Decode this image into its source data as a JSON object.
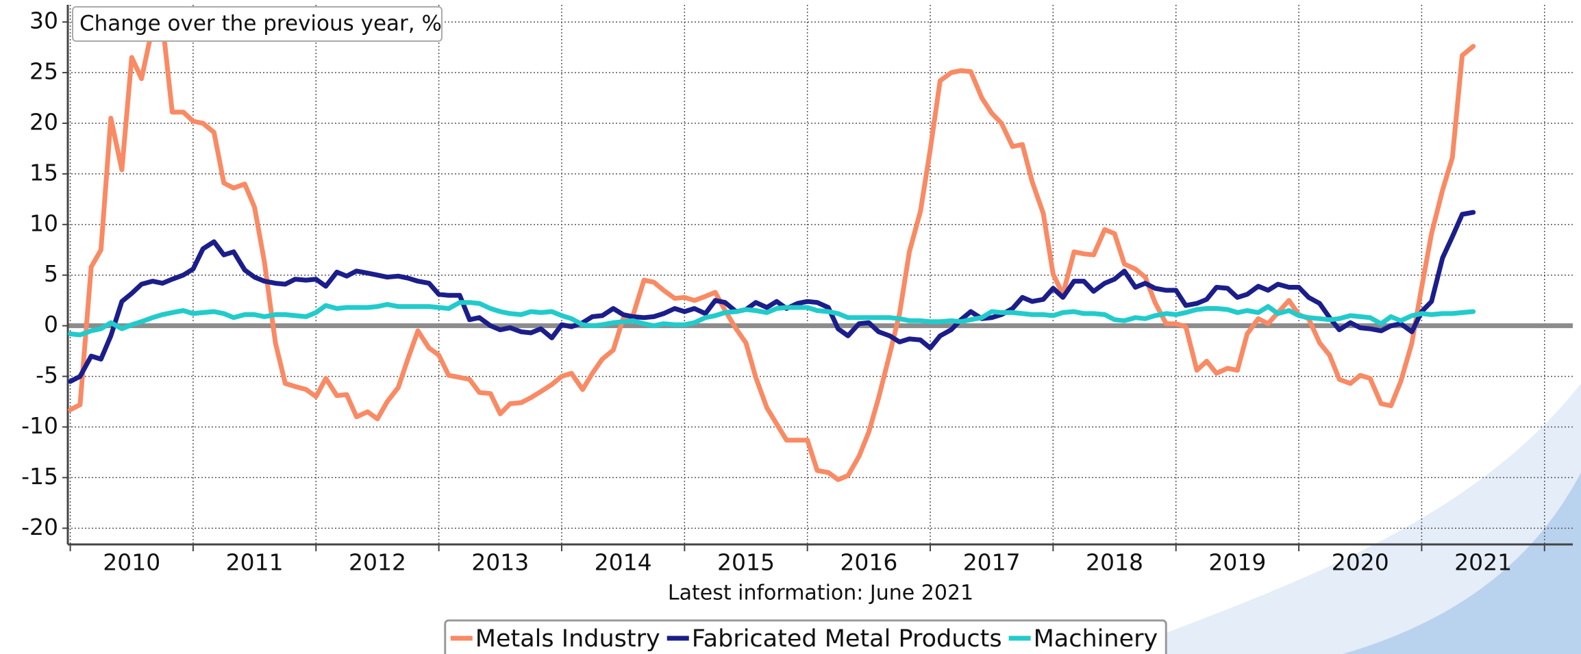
{
  "chart_data": {
    "type": "line",
    "title": "Change over the previous year, %",
    "caption": "Latest information: June 2021",
    "legend": "bottom",
    "grid": true,
    "xlim": [
      2009.98,
      2022.23
    ],
    "xticks": [
      2010,
      2011,
      2012,
      2013,
      2014,
      2015,
      2016,
      2017,
      2018,
      2019,
      2020,
      2021,
      2022
    ],
    "ylim": [
      -21.6,
      31.7
    ],
    "yticks": [
      30,
      25,
      20,
      15,
      10,
      5,
      0,
      -5,
      -10,
      -15,
      -20
    ],
    "x": [
      2010,
      2010.08,
      2010.17,
      2010.25,
      2010.33,
      2010.42,
      2010.5,
      2010.58,
      2010.67,
      2010.75,
      2010.83,
      2010.92,
      2011,
      2011.08,
      2011.17,
      2011.25,
      2011.33,
      2011.42,
      2011.5,
      2011.58,
      2011.67,
      2011.75,
      2011.83,
      2011.92,
      2012,
      2012.08,
      2012.17,
      2012.25,
      2012.33,
      2012.42,
      2012.5,
      2012.58,
      2012.67,
      2012.75,
      2012.83,
      2012.92,
      2013,
      2013.08,
      2013.17,
      2013.25,
      2013.33,
      2013.42,
      2013.5,
      2013.58,
      2013.67,
      2013.75,
      2013.83,
      2013.92,
      2014,
      2014.08,
      2014.17,
      2014.25,
      2014.33,
      2014.42,
      2014.5,
      2014.58,
      2014.67,
      2014.75,
      2014.83,
      2014.92,
      2015,
      2015.08,
      2015.17,
      2015.25,
      2015.33,
      2015.42,
      2015.5,
      2015.58,
      2015.67,
      2015.75,
      2015.83,
      2015.92,
      2016,
      2016.08,
      2016.17,
      2016.25,
      2016.33,
      2016.42,
      2016.5,
      2016.58,
      2016.67,
      2016.75,
      2016.83,
      2016.92,
      2017,
      2017.08,
      2017.17,
      2017.25,
      2017.33,
      2017.42,
      2017.5,
      2017.58,
      2017.67,
      2017.75,
      2017.83,
      2017.92,
      2018,
      2018.08,
      2018.17,
      2018.25,
      2018.33,
      2018.42,
      2018.5,
      2018.58,
      2018.67,
      2018.75,
      2018.83,
      2018.92,
      2019,
      2019.08,
      2019.17,
      2019.25,
      2019.33,
      2019.42,
      2019.5,
      2019.58,
      2019.67,
      2019.75,
      2019.83,
      2019.92,
      2020,
      2020.08,
      2020.17,
      2020.25,
      2020.33,
      2020.42,
      2020.5,
      2020.58,
      2020.67,
      2020.75,
      2020.83,
      2020.92,
      2021,
      2021.08,
      2021.17,
      2021.25,
      2021.33,
      2021.42
    ],
    "series": [
      {
        "name": "Metals Industry",
        "color": "#f98a64",
        "values": [
          -8.3,
          -7.8,
          5.8,
          7.5,
          20.5,
          15.4,
          26.5,
          24.4,
          29.5,
          30,
          21.1,
          21.1,
          20.2,
          20.0,
          19.1,
          14.1,
          13.6,
          14.0,
          11.7,
          6.3,
          -1.7,
          -5.7,
          -6.0,
          -6.3,
          -7.0,
          -5.2,
          -6.9,
          -6.8,
          -9.0,
          -8.5,
          -9.2,
          -7.5,
          -6.1,
          -3.2,
          -0.5,
          -2.2,
          -2.9,
          -4.9,
          -5.1,
          -5.3,
          -6.6,
          -6.7,
          -8.7,
          -7.7,
          -7.6,
          -7.1,
          -6.5,
          -5.8,
          -5.0,
          -4.7,
          -6.3,
          -4.7,
          -3.3,
          -2.4,
          0.7,
          1.0,
          4.5,
          4.3,
          3.5,
          2.7,
          2.8,
          2.5,
          2.9,
          3.3,
          1.5,
          -0.3,
          -1.7,
          -5.1,
          -8.1,
          -9.7,
          -11.3,
          -11.3,
          -11.3,
          -14.3,
          -14.5,
          -15.2,
          -14.8,
          -12.9,
          -10.5,
          -7.1,
          -2.8,
          1.2,
          7.3,
          11.3,
          17.4,
          24.2,
          25.0,
          25.2,
          25.1,
          22.5,
          21.0,
          20.0,
          17.7,
          17.9,
          14.2,
          11.1,
          5.1,
          3.1,
          7.3,
          7.1,
          7.0,
          9.5,
          9.1,
          6.1,
          5.6,
          4.8,
          2.3,
          0.2,
          0.2,
          -0.1,
          -4.4,
          -3.5,
          -4.7,
          -4.2,
          -4.4,
          -0.8,
          0.7,
          0.2,
          1.3,
          2.5,
          1.1,
          0.7,
          -1.7,
          -2.9,
          -5.3,
          -5.7,
          -4.9,
          -5.2,
          -7.7,
          -7.9,
          -5.5,
          -1.7,
          3.8,
          9.1,
          13.4,
          16.6,
          26.7,
          27.6
        ]
      },
      {
        "name": "Fabricated Metal Products",
        "color": "#1b1e8a",
        "values": [
          -5.5,
          -5.0,
          -3.0,
          -3.3,
          -1.0,
          2.4,
          3.2,
          4.1,
          4.4,
          4.2,
          4.6,
          5.0,
          5.6,
          7.6,
          8.3,
          7.0,
          7.3,
          5.5,
          4.8,
          4.4,
          4.2,
          4.1,
          4.6,
          4.5,
          4.6,
          3.9,
          5.3,
          4.9,
          5.4,
          5.2,
          5.0,
          4.8,
          4.9,
          4.7,
          4.4,
          4.2,
          3.1,
          3.0,
          3.0,
          0.6,
          0.8,
          0.0,
          -0.4,
          -0.2,
          -0.6,
          -0.7,
          -0.3,
          -1.2,
          0.1,
          -0.1,
          0.3,
          0.9,
          1.0,
          1.7,
          1.1,
          0.9,
          0.8,
          0.9,
          1.2,
          1.7,
          1.4,
          1.7,
          1.2,
          2.5,
          2.3,
          1.4,
          1.6,
          2.3,
          1.8,
          2.4,
          1.7,
          2.2,
          2.4,
          2.3,
          1.8,
          -0.3,
          -1.0,
          0.2,
          0.3,
          -0.6,
          -1.0,
          -1.6,
          -1.3,
          -1.4,
          -2.2,
          -1.0,
          -0.4,
          0.6,
          1.4,
          0.7,
          0.8,
          1.1,
          1.7,
          2.8,
          2.4,
          2.6,
          3.7,
          2.8,
          4.4,
          4.4,
          3.4,
          4.2,
          4.6,
          5.4,
          3.8,
          4.2,
          3.7,
          3.5,
          3.5,
          2.0,
          2.2,
          2.6,
          3.8,
          3.7,
          2.8,
          3.1,
          3.9,
          3.5,
          4.1,
          3.8,
          3.8,
          2.8,
          2.2,
          0.8,
          -0.4,
          0.3,
          -0.2,
          -0.3,
          -0.5,
          0.0,
          0.2,
          -0.6,
          1.4,
          2.4,
          6.7,
          8.8,
          11.0,
          11.2
        ]
      },
      {
        "name": "Machinery",
        "color": "#22cbcb",
        "values": [
          -0.8,
          -0.9,
          -0.5,
          -0.3,
          0.3,
          -0.3,
          0.1,
          0.4,
          0.8,
          1.1,
          1.3,
          1.5,
          1.2,
          1.3,
          1.4,
          1.2,
          0.8,
          1.1,
          1.1,
          0.9,
          1.1,
          1.1,
          1.0,
          0.9,
          1.3,
          2.0,
          1.7,
          1.8,
          1.8,
          1.8,
          1.9,
          2.1,
          1.9,
          1.9,
          1.9,
          1.9,
          1.8,
          1.7,
          2.3,
          2.3,
          2.2,
          1.7,
          1.4,
          1.2,
          1.1,
          1.4,
          1.3,
          1.4,
          1.0,
          0.7,
          0.1,
          0.0,
          0.1,
          0.3,
          0.4,
          0.5,
          0.2,
          0.0,
          0.2,
          0.1,
          0.1,
          0.3,
          0.8,
          1.0,
          1.3,
          1.4,
          1.6,
          1.5,
          1.3,
          1.7,
          1.8,
          1.8,
          1.8,
          1.5,
          1.4,
          1.2,
          0.8,
          0.8,
          0.8,
          0.8,
          0.8,
          0.7,
          0.5,
          0.5,
          0.4,
          0.4,
          0.5,
          0.4,
          0.6,
          0.8,
          1.4,
          1.3,
          1.3,
          1.2,
          1.1,
          1.1,
          1.0,
          1.3,
          1.4,
          1.2,
          1.2,
          1.1,
          0.6,
          0.5,
          0.8,
          0.7,
          1.0,
          1.2,
          1.1,
          1.3,
          1.6,
          1.7,
          1.7,
          1.6,
          1.3,
          1.5,
          1.3,
          1.9,
          1.2,
          1.5,
          1.0,
          0.8,
          0.7,
          0.6,
          0.7,
          1.0,
          0.9,
          0.8,
          0.2,
          0.9,
          0.5,
          1.0,
          1.2,
          1.1,
          1.2,
          1.2,
          1.3,
          1.4
        ]
      }
    ]
  }
}
